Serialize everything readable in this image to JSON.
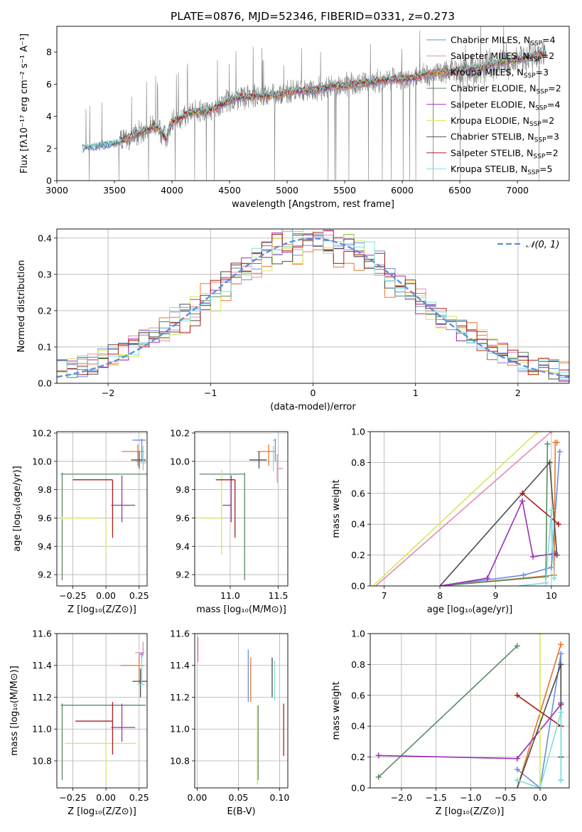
{
  "figure_title": "PLATE=0876, MJD=52346, FIBERID=0331, z=0.273",
  "series_styles": [
    {
      "name": "Chabrier MILES",
      "color": "#6a8fdc"
    },
    {
      "name": "Salpeter MILES",
      "color": "#e58ab4"
    },
    {
      "name": "Kroupa MILES",
      "color": "#e87a2c"
    },
    {
      "name": "Chabrier ELODIE",
      "color": "#5b8a63"
    },
    {
      "name": "Salpeter ELODIE",
      "color": "#9932b5"
    },
    {
      "name": "Kroupa ELODIE",
      "color": "#d6e85a"
    },
    {
      "name": "Chabrier STELIB",
      "color": "#4d4d4d"
    },
    {
      "name": "Salpeter STELIB",
      "color": "#b01c1c"
    },
    {
      "name": "Kroupa STELIB",
      "color": "#7fdede"
    }
  ],
  "chart_data": [
    {
      "id": "spectrum",
      "type": "line",
      "xlabel": "wavelength [Angstrom, rest frame]",
      "ylabel": "Flux [fλ10⁻¹⁷ erg cm⁻² s⁻¹ A⁻¹]",
      "xlim": [
        3000,
        7450
      ],
      "ylim": [
        0,
        9.6
      ],
      "xticks": [
        3000,
        3500,
        4000,
        4500,
        5000,
        5500,
        6000,
        6500,
        7000
      ],
      "yticks": [
        0,
        2,
        4,
        6,
        8
      ],
      "legend_position": "top-right",
      "legend": [
        {
          "label": "Chabrier MILES, N",
          "sub": "SSP",
          "suffix": "=4",
          "color": "#6a8fdc"
        },
        {
          "label": "Salpeter MILES, N",
          "sub": "SSP",
          "suffix": "=2",
          "color": "#e58ab4"
        },
        {
          "label": "Kroupa MILES, N",
          "sub": "SSP",
          "suffix": "=3",
          "color": "#e87a2c"
        },
        {
          "label": "Chabrier ELODIE, N",
          "sub": "SSP",
          "suffix": "=2",
          "color": "#5b8a63"
        },
        {
          "label": "Salpeter ELODIE, N",
          "sub": "SSP",
          "suffix": "=4",
          "color": "#9932b5"
        },
        {
          "label": "Kroupa ELODIE, N",
          "sub": "SSP",
          "suffix": "=2",
          "color": "#d6e85a"
        },
        {
          "label": "Chabrier STELIB, N",
          "sub": "SSP",
          "suffix": "=3",
          "color": "#4d4d4d"
        },
        {
          "label": "Salpeter STELIB, N",
          "sub": "SSP",
          "suffix": "=2",
          "color": "#b01c1c"
        },
        {
          "label": "Kroupa STELIB, N",
          "sub": "SSP",
          "suffix": "=5",
          "color": "#7fdede"
        }
      ],
      "data_color": "#808080",
      "continuum_points": [
        [
          3220,
          2.0
        ],
        [
          3300,
          2.1
        ],
        [
          3400,
          2.2
        ],
        [
          3500,
          2.3
        ],
        [
          3600,
          2.6
        ],
        [
          3700,
          2.9
        ],
        [
          3800,
          3.2
        ],
        [
          3850,
          3.4
        ],
        [
          3900,
          3.1
        ],
        [
          3950,
          2.6
        ],
        [
          4000,
          3.6
        ],
        [
          4100,
          4.0
        ],
        [
          4200,
          4.3
        ],
        [
          4300,
          4.3
        ],
        [
          4400,
          4.6
        ],
        [
          4500,
          5.0
        ],
        [
          4600,
          5.2
        ],
        [
          4700,
          5.2
        ],
        [
          4800,
          5.3
        ],
        [
          4900,
          5.3
        ],
        [
          5000,
          5.5
        ],
        [
          5100,
          5.6
        ],
        [
          5200,
          5.6
        ],
        [
          5300,
          5.7
        ],
        [
          5400,
          5.9
        ],
        [
          5500,
          5.9
        ],
        [
          5600,
          6.0
        ],
        [
          5700,
          6.1
        ],
        [
          5800,
          6.2
        ],
        [
          5900,
          6.3
        ],
        [
          6000,
          6.3
        ],
        [
          6100,
          6.4
        ],
        [
          6200,
          6.6
        ],
        [
          6300,
          6.7
        ],
        [
          6400,
          6.7
        ],
        [
          6500,
          6.9
        ],
        [
          6600,
          7.0
        ],
        [
          6700,
          7.0
        ],
        [
          6800,
          7.3
        ],
        [
          6900,
          7.4
        ],
        [
          7000,
          7.5
        ],
        [
          7100,
          7.7
        ],
        [
          7200,
          7.9
        ],
        [
          7250,
          7.9
        ]
      ]
    },
    {
      "id": "residuals",
      "type": "histogram",
      "xlabel": "(data-model)/error",
      "ylabel": "Normed distribution",
      "xlim": [
        -2.5,
        2.5
      ],
      "ylim": [
        0,
        0.425
      ],
      "xticks": [
        -2,
        -1,
        0,
        1,
        2
      ],
      "yticks": [
        0.0,
        0.1,
        0.2,
        0.3,
        0.4
      ],
      "legend_position": "top-right",
      "legend_label": "𝒩(0, 1)",
      "gaussian_color": "#5b8cdc",
      "bin_width": 0.1
    },
    {
      "id": "age-vs-Z",
      "type": "scatter-errorbar",
      "xlabel": "Z [log₁₀(Z/Z⊙)]",
      "ylabel": "age  [log₁₀(age/yr)]",
      "xlim": [
        -0.37,
        0.31
      ],
      "ylim": [
        9.12,
        10.21
      ],
      "xticks": [
        -0.25,
        0.0,
        0.25
      ],
      "yticks": [
        9.2,
        9.4,
        9.6,
        9.8,
        10.0,
        10.2
      ],
      "points": [
        {
          "series": 0,
          "x": 0.27,
          "xerr": [
            0.07,
            0.03
          ],
          "y": 10.15,
          "yerr": [
            0.15,
            0.01
          ]
        },
        {
          "series": 1,
          "x": 0.28,
          "xerr": [
            0.06,
            0.02
          ],
          "y": 10.0,
          "yerr": [
            0.06,
            0.05
          ]
        },
        {
          "series": 2,
          "x": 0.24,
          "xerr": [
            0.12,
            0.05
          ],
          "y": 10.07,
          "yerr": [
            0.1,
            0.05
          ]
        },
        {
          "series": 3,
          "x": -0.33,
          "xerr": [
            0.01,
            0.64
          ],
          "y": 9.91,
          "yerr": [
            0.75,
            0.01
          ]
        },
        {
          "series": 4,
          "x": 0.12,
          "xerr": [
            0.08,
            0.1
          ],
          "y": 9.69,
          "yerr": [
            0.12,
            0.21
          ]
        },
        {
          "series": 5,
          "x": -0.33,
          "xerr": [
            0.01,
            0.3
          ],
          "y": 9.6,
          "yerr": [
            0.01,
            0.01
          ]
        },
        {
          "series": 6,
          "x": 0.25,
          "xerr": [
            0.06,
            0.05
          ],
          "y": 10.01,
          "yerr": [
            0.06,
            0.06
          ]
        },
        {
          "series": 7,
          "x": 0.05,
          "xerr": [
            0.3,
            0.0
          ],
          "y": 9.87,
          "yerr": [
            0.41,
            0.0
          ]
        },
        {
          "series": 8,
          "x": 0.28,
          "xerr": [
            0.03,
            0.02
          ],
          "y": 9.99,
          "yerr": [
            0.04,
            0.12
          ]
        },
        {
          "series": 5,
          "x": 0.0,
          "xerr": [
            0.0,
            0.0
          ],
          "y": 9.6,
          "yerr": [
            0.25,
            0.0
          ]
        }
      ]
    },
    {
      "id": "age-vs-mass",
      "type": "scatter-errorbar",
      "xlabel": "mass [log₁₀(M/M⊙)]",
      "ylabel": "",
      "xlim": [
        10.63,
        11.6
      ],
      "ylim": [
        9.12,
        10.21
      ],
      "xticks": [
        11.0,
        11.5
      ],
      "yticks": [
        9.2,
        9.4,
        9.6,
        9.8,
        10.0,
        10.2
      ],
      "points": [
        {
          "series": 0,
          "x": 11.47,
          "xerr": [
            0.02,
            0.0
          ],
          "y": 10.15,
          "yerr": [
            0.15,
            0.01
          ]
        },
        {
          "series": 1,
          "x": 11.49,
          "xerr": [
            0.0,
            0.06
          ],
          "y": 9.95,
          "yerr": [
            0.1,
            0.1
          ]
        },
        {
          "series": 2,
          "x": 11.4,
          "xerr": [
            0.12,
            0.07
          ],
          "y": 10.07,
          "yerr": [
            0.1,
            0.05
          ]
        },
        {
          "series": 3,
          "x": 11.15,
          "xerr": [
            0.47,
            0.0
          ],
          "y": 9.91,
          "yerr": [
            0.75,
            0.01
          ]
        },
        {
          "series": 4,
          "x": 11.01,
          "xerr": [
            0.09,
            0.0
          ],
          "y": 9.69,
          "yerr": [
            0.12,
            0.21
          ]
        },
        {
          "series": 5,
          "x": 10.91,
          "xerr": [
            0.25,
            0.0
          ],
          "y": 9.6,
          "yerr": [
            0.26,
            0.34
          ]
        },
        {
          "series": 6,
          "x": 11.3,
          "xerr": [
            0.1,
            0.08
          ],
          "y": 10.01,
          "yerr": [
            0.06,
            0.06
          ]
        },
        {
          "series": 7,
          "x": 11.05,
          "xerr": [
            0.2,
            0.0
          ],
          "y": 9.87,
          "yerr": [
            0.41,
            0.0
          ]
        },
        {
          "series": 8,
          "x": 11.45,
          "xerr": [
            0.0,
            0.0
          ],
          "y": 9.99,
          "yerr": [
            0.06,
            0.12
          ]
        }
      ]
    },
    {
      "id": "mass-weight-vs-age",
      "type": "line",
      "xlabel": "age  [log₁₀(age/yr)]",
      "ylabel": "mass weight",
      "xlim": [
        6.75,
        10.32
      ],
      "ylim": [
        0,
        1.0
      ],
      "xticks": [
        7,
        8,
        9,
        10
      ],
      "yticks": [
        0.0,
        0.2,
        0.4,
        0.6,
        0.8,
        1.0
      ],
      "lines": [
        {
          "series": 0,
          "x": [
            8.0,
            9.5,
            10.0,
            10.15
          ],
          "y": [
            0.0,
            0.07,
            0.12,
            0.87
          ]
        },
        {
          "series": 1,
          "x": [
            6.85,
            10.0
          ],
          "y": [
            0.0,
            1.0
          ]
        },
        {
          "series": 2,
          "x": [
            8.0,
            10.05,
            10.07,
            10.1
          ],
          "y": [
            0.0,
            0.07,
            0.93,
            0.93
          ]
        },
        {
          "series": 3,
          "x": [
            8.0,
            9.9,
            9.93
          ],
          "y": [
            0.0,
            0.06,
            0.92
          ]
        },
        {
          "series": 4,
          "x": [
            8.0,
            8.85,
            9.48,
            9.67,
            10.07
          ],
          "y": [
            0.0,
            0.05,
            0.55,
            0.19,
            0.21
          ]
        },
        {
          "series": 5,
          "x": [
            6.8,
            9.75
          ],
          "y": [
            0.0,
            1.0
          ]
        },
        {
          "series": 6,
          "x": [
            8.0,
            9.97,
            10.1
          ],
          "y": [
            0.0,
            0.8,
            0.2
          ]
        },
        {
          "series": 7,
          "x": [
            9.48,
            10.13
          ],
          "y": [
            0.6,
            0.4
          ]
        },
        {
          "series": 8,
          "x": [
            9.4,
            9.9,
            10.0,
            10.05
          ],
          "y": [
            0.0,
            0.02,
            0.49,
            0.05
          ]
        }
      ]
    },
    {
      "id": "mass-vs-Z",
      "type": "scatter-errorbar",
      "xlabel": "Z [log₁₀(Z/Z⊙)]",
      "ylabel": "mass [log₁₀(M/M⊙)]",
      "xlim": [
        -0.37,
        0.31
      ],
      "ylim": [
        10.63,
        11.6
      ],
      "xticks": [
        -0.25,
        0.0,
        0.25
      ],
      "yticks": [
        10.8,
        11.0,
        11.2,
        11.4,
        11.6
      ],
      "points": [
        {
          "series": 0,
          "x": 0.27,
          "xerr": [
            0.02,
            0.01
          ],
          "y": 11.47,
          "yerr": [
            0.02,
            0.01
          ]
        },
        {
          "series": 1,
          "x": 0.28,
          "xerr": [
            0.06,
            0.01
          ],
          "y": 11.48,
          "yerr": [
            0.02,
            0.07
          ]
        },
        {
          "series": 2,
          "x": 0.25,
          "xerr": [
            0.14,
            0.04
          ],
          "y": 11.4,
          "yerr": [
            0.12,
            0.07
          ]
        },
        {
          "series": 3,
          "x": -0.33,
          "xerr": [
            0.01,
            0.63
          ],
          "y": 11.15,
          "yerr": [
            0.47,
            0.01
          ]
        },
        {
          "series": 4,
          "x": 0.12,
          "xerr": [
            0.08,
            0.1
          ],
          "y": 11.01,
          "yerr": [
            0.09,
            0.15
          ]
        },
        {
          "series": 5,
          "x": 0.0,
          "xerr": [
            0.31,
            0.23
          ],
          "y": 10.91,
          "yerr": [
            0.25,
            0.0
          ]
        },
        {
          "series": 6,
          "x": 0.26,
          "xerr": [
            0.06,
            0.05
          ],
          "y": 11.3,
          "yerr": [
            0.1,
            0.08
          ]
        },
        {
          "series": 7,
          "x": 0.05,
          "xerr": [
            0.28,
            0.0
          ],
          "y": 11.05,
          "yerr": [
            0.21,
            0.12
          ]
        },
        {
          "series": 8,
          "x": 0.27,
          "xerr": [
            0.03,
            0.02
          ],
          "y": 11.28,
          "yerr": [
            0.0,
            0.17
          ]
        }
      ]
    },
    {
      "id": "mass-vs-ebv",
      "type": "scatter-errorbar",
      "xlabel": "E(B-V)",
      "ylabel": "",
      "xlim": [
        -0.003,
        0.11
      ],
      "ylim": [
        10.63,
        11.6
      ],
      "xticks": [
        0.0,
        0.05,
        0.1
      ],
      "yticks": [
        10.8,
        11.0,
        11.2,
        11.4,
        11.6
      ],
      "points": [
        {
          "series": 0,
          "x": 0.062,
          "xerr": [
            0,
            0
          ],
          "y": 11.33,
          "yerr": [
            0.16,
            0.17
          ]
        },
        {
          "series": 1,
          "x": 0.001,
          "xerr": [
            0,
            0
          ],
          "y": 11.5,
          "yerr": [
            0.08,
            0.08
          ]
        },
        {
          "series": 2,
          "x": 0.065,
          "xerr": [
            0,
            0
          ],
          "y": 11.3,
          "yerr": [
            0.13,
            0.15
          ]
        },
        {
          "series": 3,
          "x": 0.074,
          "xerr": [
            0,
            0
          ],
          "y": 11.0,
          "yerr": [
            0.32,
            0.15
          ]
        },
        {
          "series": 4,
          "x": 0.0,
          "xerr": [
            0,
            0
          ],
          "y": 11.5,
          "yerr": [
            0.0,
            0.0
          ]
        },
        {
          "series": 5,
          "x": 0.073,
          "xerr": [
            0,
            0
          ],
          "y": 10.95,
          "yerr": [
            0.3,
            0.2
          ]
        },
        {
          "series": 6,
          "x": 0.091,
          "xerr": [
            0,
            0
          ],
          "y": 11.28,
          "yerr": [
            0.08,
            0.17
          ]
        },
        {
          "series": 7,
          "x": 0.105,
          "xerr": [
            0,
            0
          ],
          "y": 11.0,
          "yerr": [
            0.17,
            0.16
          ]
        },
        {
          "series": 8,
          "x": 0.094,
          "xerr": [
            0,
            0
          ],
          "y": 11.28,
          "yerr": [
            0.1,
            0.15
          ]
        }
      ]
    },
    {
      "id": "mass-weight-vs-Z",
      "type": "line",
      "xlabel": "Z [log₁₀(Z/Z⊙)]",
      "ylabel": "mass weight",
      "xlim": [
        -2.45,
        0.42
      ],
      "ylim": [
        0,
        1.0
      ],
      "xticks": [
        -2.0,
        -1.5,
        -1.0,
        -0.5,
        0.0
      ],
      "yticks": [
        0.0,
        0.2,
        0.4,
        0.6,
        0.8,
        1.0
      ],
      "lines": [
        {
          "series": 0,
          "x": [
            -0.33,
            0.0,
            0.3,
            0.3
          ],
          "y": [
            0.12,
            0.0,
            0.87,
            0.05
          ]
        },
        {
          "series": 1,
          "x": [
            -0.33,
            0.3
          ],
          "y": [
            0.0,
            0.93
          ]
        },
        {
          "series": 2,
          "x": [
            -0.33,
            0.3
          ],
          "y": [
            0.0,
            0.93
          ]
        },
        {
          "series": 3,
          "x": [
            -2.33,
            -0.33
          ],
          "y": [
            0.07,
            0.92
          ]
        },
        {
          "series": 4,
          "x": [
            -2.33,
            -0.33,
            0.3,
            0.3
          ],
          "y": [
            0.21,
            0.19,
            0.54,
            0.55
          ]
        },
        {
          "series": 5,
          "x": [
            -0.33,
            0.0,
            0.0
          ],
          "y": [
            0.05,
            0.0,
            1.0
          ]
        },
        {
          "series": 6,
          "x": [
            -0.33,
            0.3,
            0.3
          ],
          "y": [
            0.0,
            0.8,
            0.2
          ]
        },
        {
          "series": 7,
          "x": [
            -0.33,
            0.3
          ],
          "y": [
            0.6,
            0.4
          ]
        },
        {
          "series": 8,
          "x": [
            -0.33,
            0.0,
            0.3,
            0.3
          ],
          "y": [
            0.05,
            0.0,
            0.49,
            0.05
          ]
        }
      ]
    }
  ]
}
